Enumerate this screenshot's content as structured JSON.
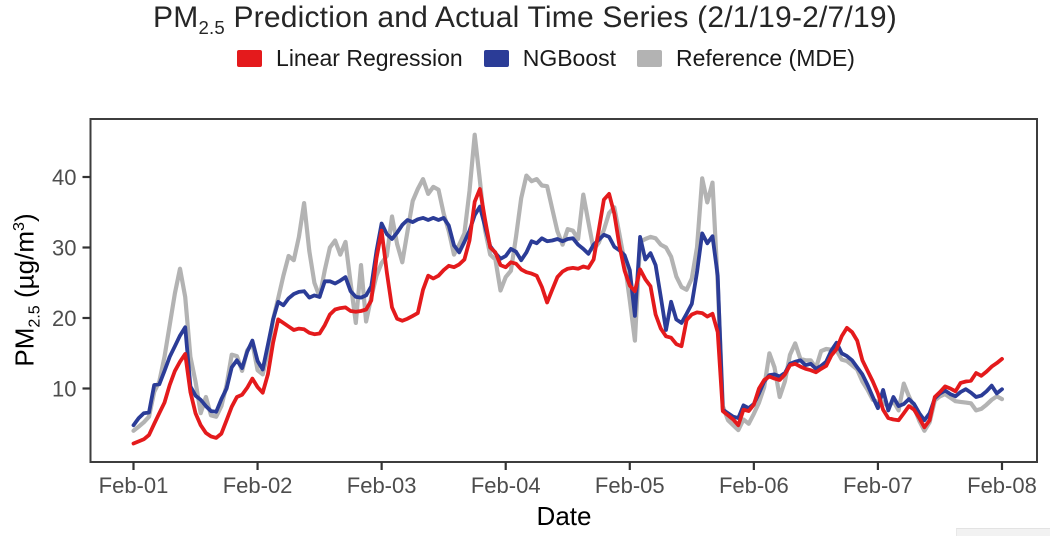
{
  "title": {
    "prefix": "PM",
    "sub": "2.5",
    "suffix": " Prediction and Actual Time Series (2/1/19-2/7/19)"
  },
  "chart_data": {
    "type": "line",
    "title": "PM2.5 Prediction and Actual Time Series (2/1/19-2/7/19)",
    "xlabel": "Date",
    "ylabel": "PM2.5 (µg/m3)",
    "ylabel_parts": {
      "prefix": "PM",
      "sub": "2.5",
      "mid": " (µg/m",
      "sup": "3",
      "suffix": ")"
    },
    "x_unit": "hours since Feb-01 00:00",
    "x_start_hour": 0,
    "x_step_hours": 1,
    "xticks": {
      "labels": [
        "Feb-01",
        "Feb-02",
        "Feb-03",
        "Feb-04",
        "Feb-05",
        "Feb-06",
        "Feb-07",
        "Feb-08"
      ],
      "hours": [
        0,
        24,
        48,
        72,
        96,
        120,
        144,
        168
      ]
    },
    "yticks": [
      10,
      20,
      30,
      40
    ],
    "ylim": [
      -0.4,
      48.2
    ],
    "grid": false,
    "legend_position": "top",
    "frame_color": "#3d3d3d",
    "tick_color": "#333333",
    "tick_label_color": "#4d4d4d",
    "series": [
      {
        "name": "Linear Regression",
        "color": "#e41a1c",
        "width": 3.8,
        "values": [
          2.2,
          2.5,
          2.8,
          3.4,
          5.0,
          6.5,
          8.0,
          10.5,
          12.5,
          13.8,
          14.9,
          9.5,
          6.5,
          4.8,
          3.7,
          3.2,
          3.0,
          3.6,
          5.5,
          7.4,
          8.8,
          9.1,
          10.1,
          11.4,
          10.2,
          9.4,
          12.0,
          16.5,
          19.8,
          19.3,
          18.8,
          18.3,
          18.5,
          18.4,
          17.9,
          17.7,
          17.8,
          19.0,
          20.5,
          21.2,
          21.4,
          21.5,
          21.0,
          20.9,
          21.0,
          21.2,
          22.5,
          28.5,
          32.4,
          26.5,
          21.5,
          19.9,
          19.6,
          19.9,
          20.3,
          20.7,
          24.0,
          26.0,
          25.6,
          26.0,
          26.8,
          27.4,
          27.2,
          27.6,
          28.3,
          31.0,
          36.5,
          38.3,
          34.0,
          30.0,
          29.3,
          27.5,
          27.2,
          27.9,
          27.7,
          26.9,
          26.5,
          26.3,
          26.0,
          24.4,
          22.2,
          24.0,
          25.8,
          26.6,
          27.0,
          27.1,
          27.0,
          27.3,
          27.1,
          28.3,
          32.5,
          36.8,
          37.6,
          34.8,
          30.3,
          26.7,
          24.6,
          23.8,
          26.9,
          25.5,
          24.5,
          20.5,
          18.5,
          17.4,
          17.2,
          16.3,
          16.0,
          19.7,
          20.5,
          20.8,
          20.7,
          20.2,
          20.6,
          18.0,
          6.8,
          6.2,
          5.6,
          4.8,
          7.0,
          6.8,
          7.7,
          10.0,
          11.2,
          11.7,
          11.4,
          11.2,
          12.0,
          13.3,
          13.5,
          13.1,
          12.8,
          12.6,
          12.3,
          12.8,
          13.2,
          14.7,
          15.6,
          17.4,
          18.6,
          18.0,
          16.8,
          14.0,
          12.5,
          11.0,
          9.3,
          7.0,
          5.8,
          5.6,
          5.5,
          6.5,
          7.5,
          7.0,
          5.8,
          4.5,
          5.5,
          8.8,
          9.5,
          10.3,
          10.0,
          9.6,
          10.8,
          11.0,
          11.1,
          12.2,
          11.8,
          12.4,
          13.1,
          13.6,
          14.2
        ]
      },
      {
        "name": "NGBoost",
        "color": "#2b3c97",
        "width": 3.8,
        "values": [
          4.8,
          5.8,
          6.5,
          6.6,
          10.5,
          10.6,
          12.5,
          14.5,
          16.0,
          17.5,
          18.7,
          10.3,
          9.0,
          8.4,
          7.5,
          6.8,
          6.7,
          8.5,
          10.0,
          13.0,
          14.0,
          12.9,
          15.2,
          16.8,
          13.9,
          12.7,
          16.2,
          19.8,
          22.3,
          21.8,
          22.8,
          23.4,
          23.7,
          23.8,
          22.9,
          23.2,
          23.0,
          25.2,
          25.2,
          24.9,
          25.3,
          25.8,
          23.8,
          23.0,
          22.9,
          23.2,
          24.5,
          29.5,
          33.4,
          31.9,
          31.2,
          32.1,
          33.2,
          33.9,
          33.6,
          34.0,
          34.2,
          33.9,
          34.2,
          33.9,
          34.2,
          33.1,
          30.3,
          29.3,
          30.8,
          32.4,
          34.6,
          35.8,
          33.0,
          30.2,
          29.2,
          28.4,
          28.8,
          29.8,
          29.4,
          28.2,
          29.3,
          30.9,
          30.6,
          31.3,
          30.9,
          31.0,
          31.2,
          30.9,
          31.2,
          31.3,
          30.4,
          29.8,
          29.1,
          30.4,
          31.1,
          31.8,
          31.5,
          30.1,
          29.6,
          28.9,
          26.8,
          20.3,
          31.5,
          28.3,
          29.2,
          27.5,
          23.0,
          18.3,
          22.3,
          19.8,
          19.3,
          20.6,
          22.0,
          26.5,
          32.0,
          30.6,
          31.6,
          26.0,
          7.0,
          6.5,
          6.0,
          5.8,
          7.6,
          7.2,
          7.8,
          9.3,
          11.0,
          11.9,
          12.0,
          11.7,
          12.2,
          13.5,
          13.8,
          14.0,
          13.3,
          13.5,
          12.8,
          13.2,
          13.8,
          15.4,
          16.5,
          15.0,
          14.6,
          14.0,
          13.0,
          12.0,
          10.5,
          8.8,
          7.2,
          9.8,
          6.9,
          8.8,
          7.5,
          7.8,
          8.5,
          7.8,
          6.5,
          5.5,
          6.5,
          8.6,
          9.3,
          9.7,
          9.2,
          8.9,
          9.5,
          9.9,
          9.4,
          8.8,
          9.0,
          9.6,
          10.4,
          9.3,
          9.9
        ]
      },
      {
        "name": "Reference (MDE)",
        "color": "#b3b3b3",
        "width": 4.2,
        "values": [
          4.0,
          4.6,
          5.2,
          6.0,
          9.5,
          11.0,
          14.5,
          19.0,
          23.5,
          27.0,
          23.0,
          14.5,
          11.0,
          6.5,
          8.8,
          6.2,
          6.0,
          7.5,
          10.5,
          14.8,
          14.6,
          12.5,
          15.4,
          16.4,
          12.6,
          12.0,
          15.2,
          19.8,
          22.8,
          26.0,
          28.8,
          28.2,
          31.5,
          36.3,
          29.5,
          25.0,
          23.0,
          26.8,
          30.0,
          31.0,
          29.0,
          30.8,
          25.0,
          19.3,
          27.5,
          19.5,
          23.0,
          26.0,
          27.8,
          28.8,
          34.4,
          30.5,
          27.9,
          32.3,
          36.6,
          38.3,
          39.7,
          37.6,
          38.6,
          38.2,
          34.8,
          32.3,
          29.0,
          30.4,
          32.0,
          38.0,
          46.0,
          39.5,
          32.5,
          29.0,
          28.3,
          23.9,
          25.8,
          26.7,
          31.5,
          37.0,
          40.2,
          39.4,
          39.7,
          38.8,
          38.7,
          35.5,
          32.3,
          30.4,
          32.6,
          32.4,
          31.2,
          37.5,
          33.6,
          29.7,
          30.7,
          32.5,
          34.9,
          35.7,
          31.9,
          27.9,
          22.5,
          16.8,
          30.8,
          31.2,
          31.5,
          31.3,
          30.4,
          30.0,
          28.7,
          25.9,
          24.4,
          24.0,
          25.6,
          30.0,
          39.8,
          36.4,
          39.2,
          25.0,
          7.5,
          5.5,
          4.8,
          4.1,
          5.6,
          5.0,
          6.4,
          8.0,
          10.2,
          15.0,
          13.0,
          8.8,
          11.0,
          14.8,
          16.4,
          14.2,
          14.0,
          14.0,
          12.9,
          15.3,
          15.6,
          15.5,
          15.4,
          14.1,
          13.9,
          13.3,
          12.7,
          11.0,
          9.8,
          8.4,
          8.1,
          8.1,
          7.4,
          8.2,
          6.9,
          10.7,
          8.9,
          7.3,
          5.4,
          4.0,
          5.2,
          8.3,
          8.9,
          9.2,
          8.7,
          8.2,
          8.1,
          8.0,
          7.9,
          6.9,
          7.1,
          7.7,
          8.4,
          8.9,
          8.5
        ]
      }
    ]
  }
}
